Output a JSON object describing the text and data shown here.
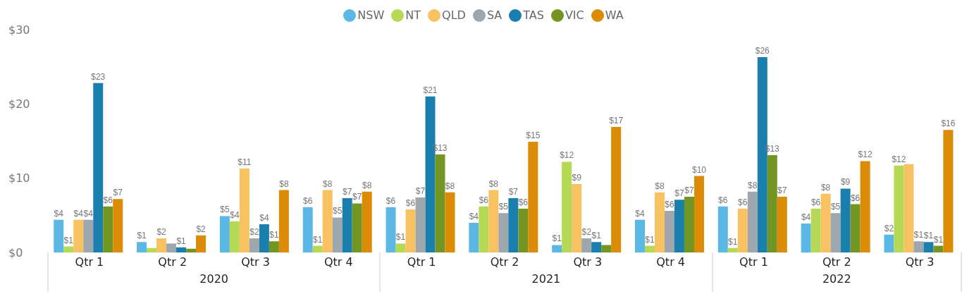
{
  "chart_data": {
    "type": "bar",
    "categories": [
      "Qtr 1",
      "Qtr 2",
      "Qtr 3",
      "Qtr 4",
      "Qtr 1",
      "Qtr 2",
      "Qtr 3",
      "Qtr 4",
      "Qtr 1",
      "Qtr 2",
      "Qtr 3"
    ],
    "annotations": [
      "2020",
      "2021",
      "2022"
    ],
    "series": [
      {
        "name": "NSW",
        "color": "#5bb8e4",
        "values": [
          4.4,
          1.4,
          4.9,
          6.1,
          6.1,
          4.0,
          1.0,
          4.4,
          6.2,
          3.9,
          2.4
        ],
        "value_labels": [
          "$4",
          "$1",
          "$5",
          "$6",
          "$6",
          "$4",
          "$1",
          "$4",
          "$6",
          "$4",
          "$2"
        ]
      },
      {
        "name": "NT",
        "color": "#b5d855",
        "values": [
          0.8,
          0.6,
          4.2,
          0.9,
          1.2,
          6.2,
          12.2,
          0.9,
          0.6,
          5.9,
          11.7
        ],
        "value_labels": [
          "$1",
          null,
          "$4",
          "$1",
          "$1",
          "$6",
          "$12",
          "$1",
          "$1",
          "$6",
          "$12"
        ]
      },
      {
        "name": "QLD",
        "color": "#f8c162",
        "values": [
          4.4,
          1.9,
          11.3,
          8.4,
          5.8,
          8.4,
          9.2,
          8.1,
          5.9,
          7.9,
          11.9
        ],
        "value_labels": [
          "$4",
          "$2",
          "$11",
          "$8",
          "$6",
          "$8",
          "$9",
          "$8",
          "$6",
          "$8",
          null
        ]
      },
      {
        "name": "SA",
        "color": "#9ea7ad",
        "values": [
          4.4,
          1.2,
          1.9,
          4.7,
          7.4,
          5.3,
          1.9,
          5.6,
          8.2,
          5.3,
          1.5
        ],
        "value_labels": [
          "$4",
          null,
          "$2",
          "$5",
          "$7",
          "$5",
          "$2",
          "$6",
          "$8",
          "$5",
          "$1"
        ]
      },
      {
        "name": "TAS",
        "color": "#1b7fae",
        "values": [
          22.8,
          0.7,
          3.8,
          7.3,
          21.0,
          7.3,
          1.4,
          7.1,
          26.3,
          8.6,
          1.4
        ],
        "value_labels": [
          "$23",
          "$1",
          "$4",
          "$7",
          "$21",
          "$7",
          "$1",
          "$7",
          "$26",
          "$9",
          "$1"
        ]
      },
      {
        "name": "VIC",
        "color": "#739522",
        "values": [
          6.2,
          0.5,
          1.5,
          6.6,
          13.2,
          5.9,
          1.0,
          7.5,
          13.1,
          6.5,
          0.9
        ],
        "value_labels": [
          "$6",
          null,
          "$1",
          "$7",
          "$13",
          "$6",
          null,
          "$7",
          "$13",
          "$6",
          "$1"
        ]
      },
      {
        "name": "WA",
        "color": "#db8b06",
        "values": [
          7.2,
          2.3,
          8.4,
          8.2,
          8.1,
          14.9,
          16.9,
          10.3,
          7.5,
          12.3,
          16.5
        ],
        "value_labels": [
          "$7",
          "$2",
          "$8",
          "$8",
          "$8",
          "$15",
          "$17",
          "$10",
          "$7",
          "$12",
          "$16"
        ]
      }
    ],
    "ylim": [
      0,
      30
    ],
    "yticks": [
      {
        "value": 0,
        "label": "$0"
      },
      {
        "value": 10,
        "label": "$10"
      },
      {
        "value": 20,
        "label": "$20"
      },
      {
        "value": 30,
        "label": "$30"
      }
    ],
    "grid": false,
    "legend": "top"
  }
}
